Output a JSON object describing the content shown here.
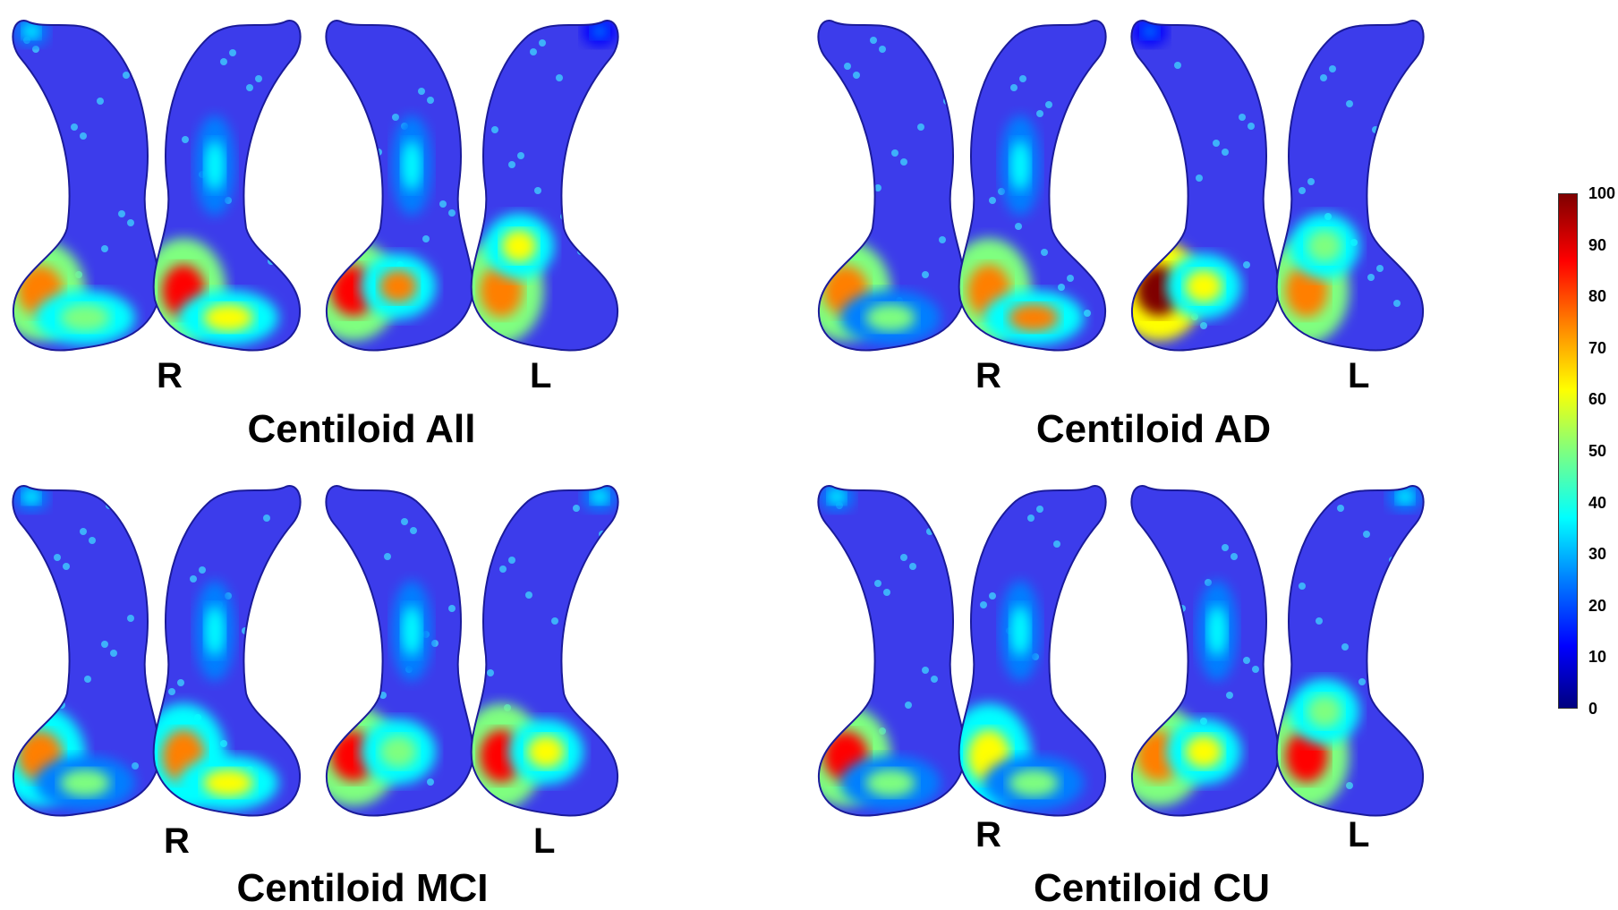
{
  "panels": [
    {
      "caption": "Centiloid All",
      "right_label": "R",
      "left_label": "L",
      "views": [
        {
          "hotspots": [
            {
              "region": "head-lateral",
              "level": 80
            },
            {
              "region": "head-lower",
              "level": 55
            },
            {
              "region": "tail-tip",
              "level": 35
            }
          ]
        },
        {
          "hotspots": [
            {
              "region": "head-medial",
              "level": 85
            },
            {
              "region": "body",
              "level": 40
            },
            {
              "region": "head-lower",
              "level": 60
            }
          ]
        },
        {
          "hotspots": [
            {
              "region": "head-lateral",
              "level": 90
            },
            {
              "region": "head-center",
              "level": 70
            },
            {
              "region": "body",
              "level": 35
            }
          ]
        },
        {
          "hotspots": [
            {
              "region": "head-medial",
              "level": 80
            },
            {
              "region": "head-upper",
              "level": 60
            },
            {
              "region": "tail-tip",
              "level": 30
            }
          ]
        }
      ]
    },
    {
      "caption": "Centiloid AD",
      "right_label": "R",
      "left_label": "L",
      "views": [
        {
          "hotspots": [
            {
              "region": "head-lateral",
              "level": 75
            },
            {
              "region": "head-lower",
              "level": 45
            }
          ]
        },
        {
          "hotspots": [
            {
              "region": "head-medial",
              "level": 75
            },
            {
              "region": "head-lower",
              "level": 70
            },
            {
              "region": "body",
              "level": 35
            }
          ]
        },
        {
          "hotspots": [
            {
              "region": "head-lateral",
              "level": 95
            },
            {
              "region": "head-center",
              "level": 60
            },
            {
              "region": "tail-tip",
              "level": 30
            }
          ]
        },
        {
          "hotspots": [
            {
              "region": "head-medial",
              "level": 78
            },
            {
              "region": "head-upper",
              "level": 55
            }
          ]
        }
      ]
    },
    {
      "caption": "Centiloid MCI",
      "right_label": "R",
      "left_label": "L",
      "views": [
        {
          "hotspots": [
            {
              "region": "head-lateral",
              "level": 70
            },
            {
              "region": "head-lower",
              "level": 50
            },
            {
              "region": "tail-tip",
              "level": 40
            }
          ]
        },
        {
          "hotspots": [
            {
              "region": "head-medial",
              "level": 70
            },
            {
              "region": "head-lower",
              "level": 60
            },
            {
              "region": "body",
              "level": 40
            }
          ]
        },
        {
          "hotspots": [
            {
              "region": "head-lateral",
              "level": 85
            },
            {
              "region": "head-center",
              "level": 55
            },
            {
              "region": "body",
              "level": 35
            }
          ]
        },
        {
          "hotspots": [
            {
              "region": "head-medial",
              "level": 85
            },
            {
              "region": "head-center",
              "level": 60
            },
            {
              "region": "tail-tip",
              "level": 40
            }
          ]
        }
      ]
    },
    {
      "caption": "Centiloid CU",
      "right_label": "R",
      "left_label": "L",
      "views": [
        {
          "hotspots": [
            {
              "region": "head-lateral",
              "level": 85
            },
            {
              "region": "head-lower",
              "level": 45
            },
            {
              "region": "tail-tip",
              "level": 40
            }
          ]
        },
        {
          "hotspots": [
            {
              "region": "head-medial",
              "level": 60
            },
            {
              "region": "head-lower",
              "level": 50
            },
            {
              "region": "body",
              "level": 35
            }
          ]
        },
        {
          "hotspots": [
            {
              "region": "head-lateral",
              "level": 80
            },
            {
              "region": "head-center",
              "level": 60
            },
            {
              "region": "body",
              "level": 35
            }
          ]
        },
        {
          "hotspots": [
            {
              "region": "head-medial",
              "level": 88
            },
            {
              "region": "head-upper",
              "level": 55
            },
            {
              "region": "tail-tip",
              "level": 40
            }
          ]
        }
      ]
    }
  ],
  "colorbar": {
    "min": 0,
    "max": 100,
    "ticks": [
      "100",
      "90",
      "80",
      "70",
      "60",
      "50",
      "40",
      "30",
      "20",
      "10",
      "0"
    ],
    "colormap": "jet",
    "colors": [
      "#00007f",
      "#0000ff",
      "#007fff",
      "#00ffff",
      "#7fff7f",
      "#ffff00",
      "#ff7f00",
      "#ff0000",
      "#7f0000"
    ]
  },
  "surface_base_color": "#3c3ceb"
}
